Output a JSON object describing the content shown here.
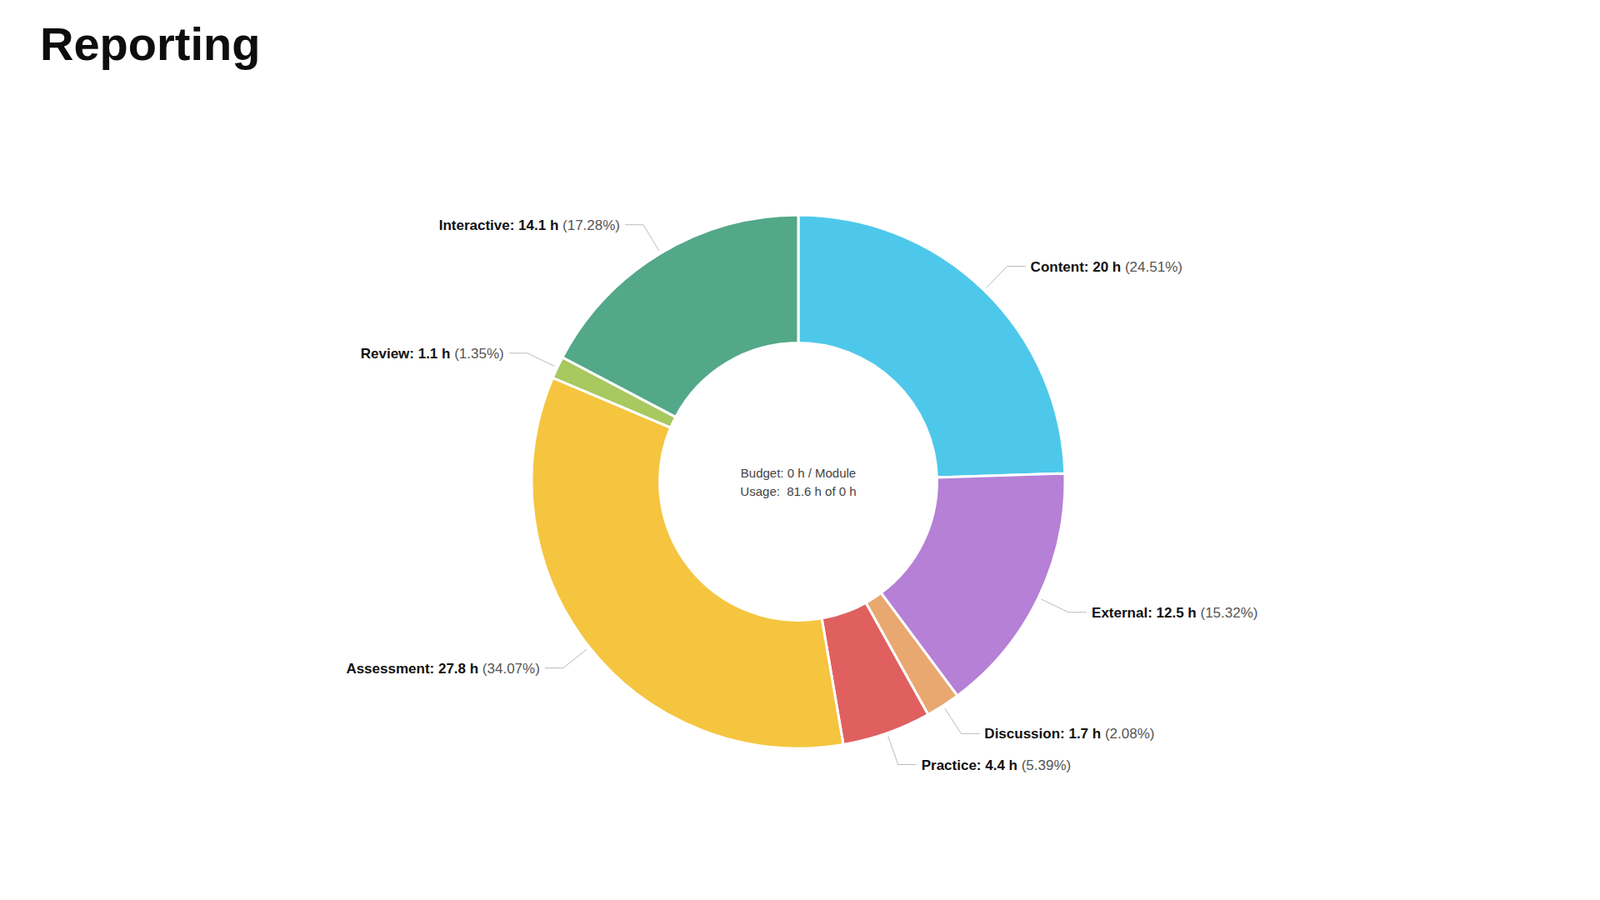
{
  "chart_data": {
    "type": "pie",
    "title": "Reporting",
    "categories": [
      "Content",
      "External",
      "Discussion",
      "Practice",
      "Assessment",
      "Review",
      "Interactive"
    ],
    "values": [
      24.51,
      15.32,
      2.08,
      5.39,
      34.07,
      1.35,
      17.28
    ],
    "colors": [
      "#4ec8ea",
      "#b580d6",
      "#e8a870",
      "#e06060",
      "#f5c540",
      "#a8c860",
      "#52a888"
    ],
    "data_labels": true,
    "value_labels": [
      "Content: 20 h (24.51%)",
      "External: 12.5 h (15.32%)",
      "Discussion: 1.7 h (2.08%)",
      "Practice: 4.4 h (5.39%)",
      "Assessment: 27.8 h (34.07%)",
      "Review: 1.1 h (1.35%)",
      "Interactive: 14.1 h (17.28%)"
    ],
    "annotations": [
      "Budget: 0 h / Module",
      "Usage:  81.6 h of 0 h"
    ]
  }
}
